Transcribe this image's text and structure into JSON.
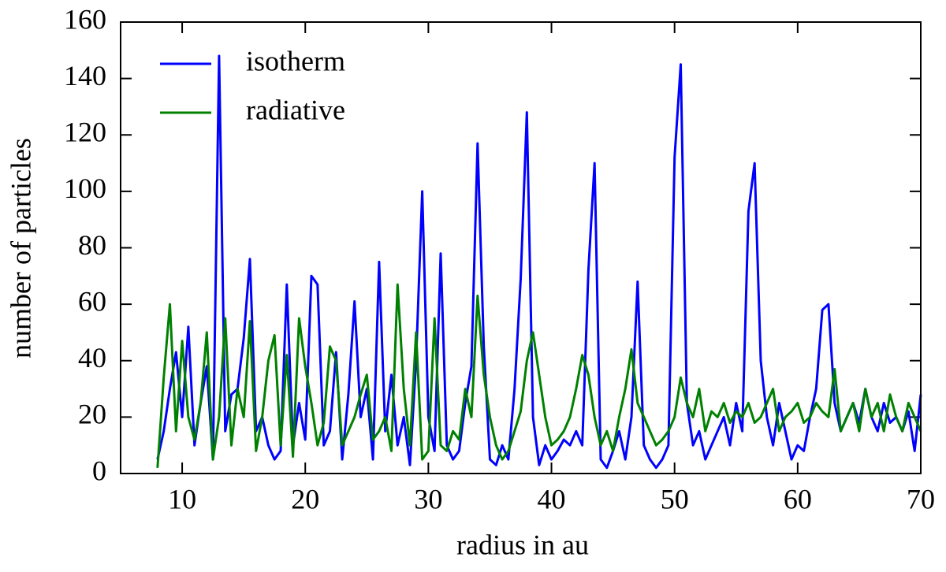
{
  "chart_data": {
    "type": "line",
    "xlabel": "radius in au",
    "ylabel": "number of particles",
    "x": [
      8,
      8.5,
      9,
      9.5,
      10,
      10.5,
      11,
      11.5,
      12,
      12.5,
      13,
      13.5,
      14,
      14.5,
      15,
      15.5,
      16,
      16.5,
      17,
      17.5,
      18,
      18.5,
      19,
      19.5,
      20,
      20.5,
      21,
      21.5,
      22,
      22.5,
      23,
      23.5,
      24,
      24.5,
      25,
      25.5,
      26,
      26.5,
      27,
      27.5,
      28,
      28.5,
      29,
      29.5,
      30,
      30.5,
      31,
      31.5,
      32,
      32.5,
      33,
      33.5,
      34,
      34.5,
      35,
      35.5,
      36,
      36.5,
      37,
      37.5,
      38,
      38.5,
      39,
      39.5,
      40,
      40.5,
      41,
      41.5,
      42,
      42.5,
      43,
      43.5,
      44,
      44.5,
      45,
      45.5,
      46,
      46.5,
      47,
      47.5,
      48,
      48.5,
      49,
      49.5,
      50,
      50.5,
      51,
      51.5,
      52,
      52.5,
      53,
      53.5,
      54,
      54.5,
      55,
      55.5,
      56,
      56.5,
      57,
      57.5,
      58,
      58.5,
      59,
      59.5,
      60,
      60.5,
      61,
      61.5,
      62,
      62.5,
      63,
      63.5,
      64,
      64.5,
      65,
      65.5,
      66,
      66.5,
      67,
      67.5,
      68,
      68.5,
      69,
      69.5,
      70
    ],
    "series": [
      {
        "name": "isotherm",
        "color": "#0000ff",
        "values": [
          5,
          15,
          30,
          43,
          20,
          52,
          10,
          25,
          38,
          5,
          148,
          15,
          28,
          30,
          48,
          76,
          15,
          20,
          10,
          5,
          8,
          67,
          10,
          25,
          12,
          70,
          67,
          10,
          15,
          43,
          5,
          28,
          61,
          20,
          30,
          5,
          75,
          15,
          35,
          10,
          20,
          3,
          40,
          100,
          20,
          8,
          78,
          10,
          5,
          8,
          25,
          38,
          117,
          45,
          5,
          3,
          10,
          5,
          30,
          69,
          128,
          20,
          3,
          10,
          5,
          8,
          12,
          10,
          15,
          10,
          72,
          110,
          5,
          2,
          8,
          15,
          5,
          20,
          68,
          10,
          5,
          2,
          5,
          10,
          112,
          145,
          25,
          10,
          15,
          5,
          10,
          15,
          20,
          10,
          25,
          15,
          93,
          110,
          40,
          20,
          10,
          25,
          15,
          5,
          10,
          8,
          20,
          30,
          58,
          60,
          25,
          15,
          20,
          25,
          18,
          30,
          20,
          15,
          25,
          18,
          20,
          15,
          22,
          8,
          28
        ]
      },
      {
        "name": "radiative",
        "color": "#008000",
        "values": [
          2,
          34,
          60,
          15,
          47,
          20,
          12,
          25,
          50,
          5,
          20,
          55,
          10,
          30,
          20,
          54,
          8,
          20,
          40,
          49,
          10,
          42,
          6,
          55,
          38,
          25,
          10,
          18,
          45,
          40,
          10,
          15,
          20,
          28,
          35,
          12,
          15,
          20,
          8,
          67,
          30,
          10,
          50,
          5,
          8,
          55,
          10,
          8,
          15,
          12,
          30,
          20,
          63,
          35,
          20,
          10,
          5,
          8,
          15,
          22,
          40,
          50,
          35,
          20,
          10,
          12,
          15,
          20,
          30,
          42,
          35,
          20,
          10,
          15,
          8,
          20,
          30,
          44,
          25,
          20,
          15,
          10,
          12,
          15,
          20,
          34,
          25,
          20,
          30,
          15,
          22,
          20,
          25,
          18,
          22,
          20,
          25,
          18,
          20,
          25,
          30,
          15,
          20,
          22,
          25,
          18,
          20,
          25,
          22,
          20,
          37,
          15,
          20,
          25,
          15,
          30,
          20,
          25,
          15,
          28,
          20,
          15,
          25,
          20,
          15
        ]
      }
    ],
    "xlim": [
      5,
      70
    ],
    "xticks": [
      10,
      20,
      30,
      40,
      50,
      60,
      70
    ],
    "ylim": [
      0,
      160
    ],
    "yticks": [
      0,
      20,
      40,
      60,
      80,
      100,
      120,
      140,
      160
    ],
    "legend": "upper left",
    "grid": false
  }
}
